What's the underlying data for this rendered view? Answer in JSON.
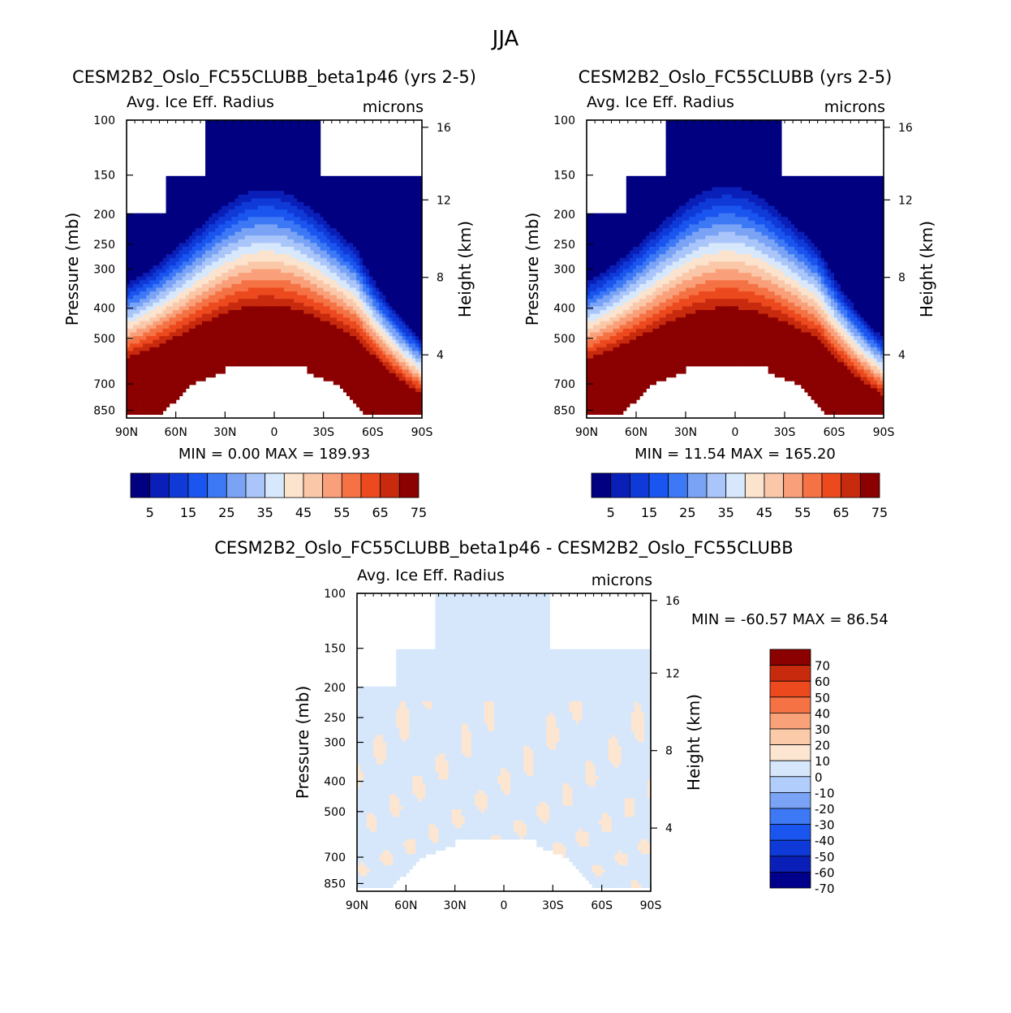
{
  "page_title": "JJA",
  "colors": {
    "cmap15": [
      "#000080",
      "#0a1fb8",
      "#0f3ad8",
      "#1a55ef",
      "#3d78f5",
      "#7aa3f5",
      "#a9c5fa",
      "#d8e8fc",
      "#fbe3cd",
      "#fbc7a9",
      "#f9a07a",
      "#f57245",
      "#ec4a1e",
      "#c82a0e",
      "#8b0000"
    ],
    "cmap_diff": [
      "#00008b",
      "#0a1fb8",
      "#0f3ad8",
      "#1a55ef",
      "#3d78f5",
      "#7aa3f5",
      "#b1cdfb",
      "#d6e7fb",
      "#fce6d2",
      "#fbcaa9",
      "#f9a27a",
      "#f57245",
      "#ec4a1e",
      "#c82a0e",
      "#8b0000"
    ]
  },
  "chart_data": [
    {
      "id": "panel1",
      "type": "heatmap",
      "title": "CESM2B2_Oslo_FC55CLUBB_beta1p46 (yrs 2-5)",
      "subtitle_left": "Avg. Ice Eff. Radius",
      "units": "microns",
      "ylabel": "Pressure (mb)",
      "y2label": "Height (km)",
      "x_ticks": [
        "90N",
        "60N",
        "30N",
        "0",
        "30S",
        "60S",
        "90S"
      ],
      "p_ticks": [
        100,
        150,
        200,
        250,
        300,
        400,
        500,
        700,
        850
      ],
      "h_ticks": [
        16,
        12,
        8,
        4
      ],
      "stats": {
        "min_label": "MIN =",
        "min": "0.00",
        "max_label": "MAX =",
        "max": "189.93"
      },
      "colorbar_labels": [
        "5",
        "15",
        "25",
        "35",
        "45",
        "55",
        "65",
        "75"
      ],
      "field": {
        "base_pressure_mb": 270,
        "gradient_width_mb": 110
      },
      "mask": {
        "top_mb": 100,
        "missing_above_200_lat": [
          90,
          66
        ],
        "missing_above_150_lat": [
          [
            90,
            42
          ],
          [
            -28,
            -90
          ]
        ]
      }
    },
    {
      "id": "panel2",
      "type": "heatmap",
      "title": "CESM2B2_Oslo_FC55CLUBB (yrs 2-5)",
      "subtitle_left": "Avg. Ice Eff. Radius",
      "units": "microns",
      "ylabel": "Pressure (mb)",
      "y2label": "Height (km)",
      "x_ticks": [
        "90N",
        "60N",
        "30N",
        "0",
        "30S",
        "60S",
        "90S"
      ],
      "p_ticks": [
        100,
        150,
        200,
        250,
        300,
        400,
        500,
        700,
        850
      ],
      "h_ticks": [
        16,
        12,
        8,
        4
      ],
      "stats": {
        "min_label": "MIN =",
        "min": "11.54",
        "max_label": "MAX =",
        "max": "165.20"
      },
      "colorbar_labels": [
        "5",
        "15",
        "25",
        "35",
        "45",
        "55",
        "65",
        "75"
      ],
      "field": {
        "base_pressure_mb": 270,
        "gradient_width_mb": 115
      },
      "mask": {
        "top_mb": 100,
        "missing_above_200_lat": [
          90,
          66
        ],
        "missing_above_150_lat": [
          [
            90,
            42
          ],
          [
            -28,
            -90
          ]
        ]
      }
    },
    {
      "id": "panel3",
      "type": "heatmap",
      "title": "CESM2B2_Oslo_FC55CLUBB_beta1p46 - CESM2B2_Oslo_FC55CLUBB",
      "subtitle_left": "Avg. Ice Eff. Radius",
      "units": "microns",
      "ylabel": "Pressure (mb)",
      "y2label": "Height (km)",
      "x_ticks": [
        "90N",
        "60N",
        "30N",
        "0",
        "30S",
        "60S",
        "90S"
      ],
      "p_ticks": [
        100,
        150,
        200,
        250,
        300,
        400,
        500,
        700,
        850
      ],
      "h_ticks": [
        16,
        12,
        8,
        4
      ],
      "stats": {
        "min_label": "MIN =",
        "min": "-60.57",
        "max_label": "MAX =",
        "max": "86.54"
      },
      "colorbar_labels": [
        "70",
        "60",
        "50",
        "40",
        "30",
        "20",
        "10",
        "0",
        "-10",
        "-20",
        "-30",
        "-40",
        "-50",
        "-60",
        "-70"
      ],
      "mask": {
        "top_mb": 100,
        "missing_above_200_lat": [
          90,
          66
        ],
        "missing_above_150_lat": [
          [
            90,
            42
          ],
          [
            -28,
            -90
          ]
        ]
      }
    }
  ]
}
